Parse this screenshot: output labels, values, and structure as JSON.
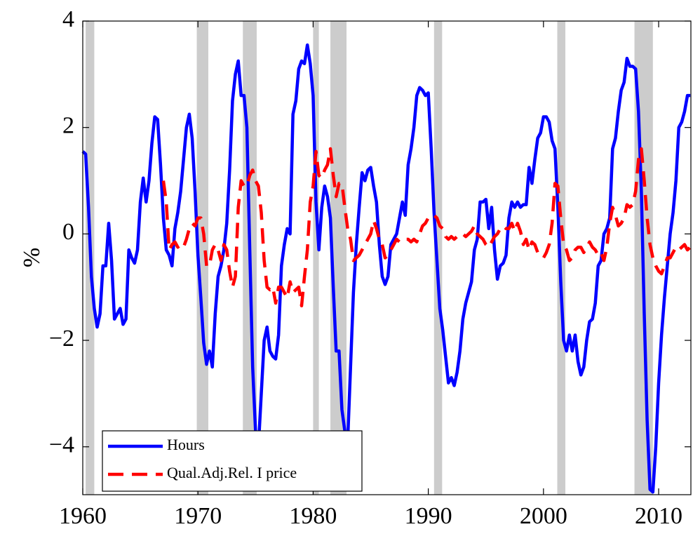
{
  "chart_data": {
    "type": "line",
    "y_label": "%",
    "x": [
      1960,
      1960.25,
      1960.5,
      1960.75,
      1961,
      1961.25,
      1961.5,
      1961.75,
      1962,
      1962.25,
      1962.5,
      1962.75,
      1963,
      1963.25,
      1963.5,
      1963.75,
      1964,
      1964.25,
      1964.5,
      1964.75,
      1965,
      1965.25,
      1965.5,
      1965.75,
      1966,
      1966.25,
      1966.5,
      1966.75,
      1967,
      1967.25,
      1967.5,
      1967.75,
      1968,
      1968.25,
      1968.5,
      1968.75,
      1969,
      1969.25,
      1969.5,
      1969.75,
      1970,
      1970.25,
      1970.5,
      1970.75,
      1971,
      1971.25,
      1971.5,
      1971.75,
      1972,
      1972.25,
      1972.5,
      1972.75,
      1973,
      1973.25,
      1973.5,
      1973.75,
      1974,
      1974.25,
      1974.5,
      1974.75,
      1975,
      1975.25,
      1975.5,
      1975.75,
      1976,
      1976.25,
      1976.5,
      1976.75,
      1977,
      1977.25,
      1977.5,
      1977.75,
      1978,
      1978.25,
      1978.5,
      1978.75,
      1979,
      1979.25,
      1979.5,
      1979.75,
      1980,
      1980.25,
      1980.5,
      1980.75,
      1981,
      1981.25,
      1981.5,
      1981.75,
      1982,
      1982.25,
      1982.5,
      1982.75,
      1983,
      1983.25,
      1983.5,
      1983.75,
      1984,
      1984.25,
      1984.5,
      1984.75,
      1985,
      1985.25,
      1985.5,
      1985.75,
      1986,
      1986.25,
      1986.5,
      1986.75,
      1987,
      1987.25,
      1987.5,
      1987.75,
      1988,
      1988.25,
      1988.5,
      1988.75,
      1989,
      1989.25,
      1989.5,
      1989.75,
      1990,
      1990.25,
      1990.5,
      1990.75,
      1991,
      1991.25,
      1991.5,
      1991.75,
      1992,
      1992.25,
      1992.5,
      1992.75,
      1993,
      1993.25,
      1993.5,
      1993.75,
      1994,
      1994.25,
      1994.5,
      1994.75,
      1995,
      1995.25,
      1995.5,
      1995.75,
      1996,
      1996.25,
      1996.5,
      1996.75,
      1997,
      1997.25,
      1997.5,
      1997.75,
      1998,
      1998.25,
      1998.5,
      1998.75,
      1999,
      1999.25,
      1999.5,
      1999.75,
      2000,
      2000.25,
      2000.5,
      2000.75,
      2001,
      2001.25,
      2001.5,
      2001.75,
      2002,
      2002.25,
      2002.5,
      2002.75,
      2003,
      2003.25,
      2003.5,
      2003.75,
      2004,
      2004.25,
      2004.5,
      2004.75,
      2005,
      2005.25,
      2005.5,
      2005.75,
      2006,
      2006.25,
      2006.5,
      2006.75,
      2007,
      2007.25,
      2007.5,
      2007.75,
      2008,
      2008.25,
      2008.5,
      2008.75,
      2009,
      2009.25,
      2009.5,
      2009.75,
      2010,
      2010.25,
      2010.5,
      2010.75,
      2011,
      2011.25,
      2011.5,
      2011.75,
      2012,
      2012.25,
      2012.5,
      2012.75
    ],
    "series": [
      {
        "name": "Hours",
        "color": "#0000ff",
        "style": "solid",
        "values": [
          1.55,
          1.5,
          0.5,
          -0.8,
          -1.4,
          -1.75,
          -1.5,
          -0.6,
          -0.6,
          0.2,
          -0.5,
          -1.6,
          -1.5,
          -1.4,
          -1.7,
          -1.6,
          -0.3,
          -0.45,
          -0.55,
          -0.3,
          0.6,
          1.05,
          0.6,
          1.0,
          1.7,
          2.2,
          2.15,
          1.3,
          0.3,
          -0.3,
          -0.4,
          -0.6,
          0.1,
          0.4,
          0.8,
          1.4,
          2.0,
          2.25,
          1.8,
          0.8,
          -0.4,
          -1.2,
          -2.05,
          -2.45,
          -2.2,
          -2.5,
          -1.5,
          -0.8,
          -0.6,
          -0.3,
          0.2,
          1.2,
          2.5,
          3.0,
          3.25,
          2.6,
          2.6,
          2.0,
          -0.3,
          -2.5,
          -3.7,
          -4.0,
          -3.0,
          -2.0,
          -1.75,
          -2.2,
          -2.3,
          -2.35,
          -1.9,
          -0.6,
          -0.2,
          0.1,
          0.0,
          2.25,
          2.5,
          3.1,
          3.25,
          3.2,
          3.55,
          3.2,
          2.6,
          0.6,
          -0.3,
          0.5,
          0.9,
          0.7,
          0.3,
          -1.0,
          -2.2,
          -2.2,
          -3.3,
          -3.7,
          -3.9,
          -2.5,
          -1.1,
          -0.2,
          0.5,
          1.15,
          1.0,
          1.2,
          1.25,
          0.9,
          0.6,
          -0.2,
          -0.8,
          -0.95,
          -0.8,
          -0.2,
          -0.1,
          0.0,
          0.3,
          0.6,
          0.35,
          1.3,
          1.6,
          2.0,
          2.6,
          2.75,
          2.7,
          2.6,
          2.65,
          1.6,
          0.4,
          -0.5,
          -1.4,
          -1.8,
          -2.3,
          -2.8,
          -2.7,
          -2.85,
          -2.6,
          -2.2,
          -1.6,
          -1.3,
          -1.1,
          -0.9,
          -0.3,
          -0.1,
          0.6,
          0.6,
          0.65,
          0.1,
          0.5,
          -0.3,
          -0.85,
          -0.6,
          -0.55,
          -0.4,
          0.3,
          0.6,
          0.5,
          0.6,
          0.5,
          0.55,
          0.55,
          1.25,
          0.95,
          1.4,
          1.8,
          1.9,
          2.2,
          2.2,
          2.1,
          1.75,
          1.6,
          0.5,
          -0.9,
          -2.0,
          -2.2,
          -1.9,
          -2.2,
          -1.9,
          -2.4,
          -2.65,
          -2.5,
          -2.0,
          -1.65,
          -1.6,
          -1.3,
          -0.6,
          -0.5,
          0.0,
          0.1,
          0.3,
          1.6,
          1.8,
          2.3,
          2.7,
          2.85,
          3.3,
          3.15,
          3.15,
          3.1,
          2.3,
          0.8,
          -1.5,
          -3.5,
          -4.8,
          -4.85,
          -4.0,
          -2.8,
          -1.9,
          -1.2,
          -0.6,
          0.0,
          0.4,
          1.0,
          2.0,
          2.1,
          2.3,
          2.6,
          2.6
        ]
      },
      {
        "name": "Qual.Adj.Rel. I price",
        "color": "#ff0000",
        "style": "dashed",
        "values": [
          null,
          null,
          null,
          null,
          null,
          null,
          null,
          null,
          null,
          null,
          null,
          null,
          null,
          null,
          null,
          null,
          null,
          null,
          null,
          null,
          null,
          null,
          null,
          null,
          null,
          null,
          null,
          null,
          1.0,
          0.6,
          -0.3,
          -0.2,
          -0.15,
          -0.25,
          -0.2,
          -0.25,
          -0.1,
          0.1,
          0.2,
          0.15,
          0.3,
          0.3,
          0.0,
          -0.6,
          -0.6,
          -0.3,
          -0.2,
          -0.3,
          -0.5,
          -0.2,
          -0.3,
          -0.7,
          -1.0,
          -0.8,
          0.5,
          1.0,
          0.9,
          0.9,
          1.1,
          1.2,
          1.0,
          0.9,
          0.4,
          -0.5,
          -1.0,
          -1.05,
          -1.0,
          -1.3,
          -1.0,
          -1.0,
          -1.1,
          -1.2,
          -0.9,
          -1.1,
          -1.05,
          -1.0,
          -1.35,
          -0.8,
          -0.3,
          0.6,
          0.9,
          1.55,
          1.1,
          1.05,
          1.2,
          1.3,
          1.6,
          1.1,
          0.7,
          0.95,
          0.95,
          0.5,
          0.1,
          -0.1,
          -0.5,
          -0.45,
          -0.4,
          -0.3,
          -0.2,
          -0.1,
          0.0,
          0.25,
          0.1,
          -0.1,
          -0.2,
          -0.45,
          -0.4,
          -0.3,
          -0.2,
          -0.1,
          -0.15,
          -0.1,
          -0.1,
          -0.1,
          -0.15,
          -0.1,
          -0.15,
          0.0,
          0.15,
          0.2,
          0.3,
          0.3,
          0.35,
          0.3,
          0.15,
          0.1,
          -0.05,
          -0.1,
          -0.05,
          -0.1,
          -0.05,
          -0.05,
          0.0,
          -0.05,
          0.0,
          0.05,
          0.15,
          0.0,
          -0.05,
          -0.1,
          -0.2,
          -0.25,
          -0.15,
          -0.05,
          0.0,
          0.1,
          0.15,
          0.1,
          0.1,
          0.2,
          0.05,
          0.2,
          0.05,
          -0.2,
          -0.1,
          -0.3,
          -0.15,
          -0.2,
          -0.35,
          -0.4,
          -0.45,
          -0.35,
          -0.2,
          0.2,
          0.95,
          0.9,
          0.3,
          -0.2,
          -0.3,
          -0.5,
          -0.45,
          -0.3,
          -0.25,
          -0.25,
          -0.35,
          -0.25,
          -0.15,
          -0.25,
          -0.3,
          -0.4,
          -0.35,
          -0.5,
          -0.25,
          0.2,
          0.5,
          0.35,
          0.15,
          0.2,
          0.3,
          0.55,
          0.5,
          0.55,
          0.8,
          1.4,
          1.6,
          1.0,
          0.3,
          -0.2,
          -0.45,
          -0.6,
          -0.7,
          -0.75,
          -0.6,
          -0.45,
          -0.45,
          -0.35,
          -0.25,
          -0.3,
          -0.25,
          -0.2,
          -0.3,
          -0.25
        ]
      }
    ],
    "recessions": [
      [
        1960.25,
        1961.0
      ],
      [
        1969.9,
        1970.9
      ],
      [
        1973.9,
        1975.1
      ],
      [
        1980.0,
        1980.5
      ],
      [
        1981.5,
        1982.9
      ],
      [
        1990.5,
        1991.2
      ],
      [
        2001.2,
        2001.9
      ],
      [
        2007.9,
        2009.5
      ]
    ],
    "recession_color": "#cccccc",
    "xlim": [
      1960,
      2012.8
    ],
    "ylim": [
      -4.9,
      4
    ],
    "xticks": [
      1960,
      1970,
      1980,
      1990,
      2000,
      2010
    ],
    "yticks": [
      {
        "value": -4,
        "label": "−4"
      },
      {
        "value": -2,
        "label": "−2"
      },
      0,
      2,
      4
    ],
    "grid": false,
    "legend": "lower left"
  }
}
